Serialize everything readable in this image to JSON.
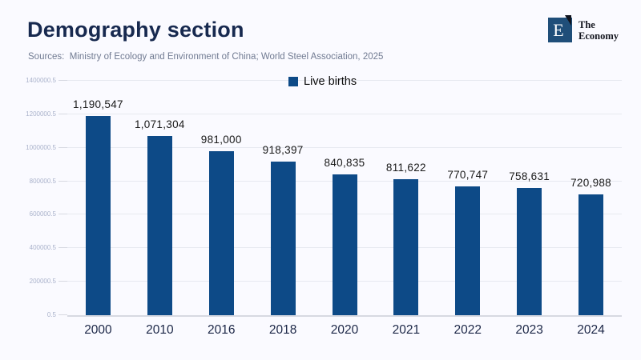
{
  "header": {
    "title": "Demography section",
    "sources": "Sources:  Ministry of Ecology and Environment of China; World Steel Association, 2025",
    "logo": {
      "mark_letter": "E",
      "name_line1": "The",
      "name_line2": "Economy",
      "mark_color": "#1f4e79"
    }
  },
  "chart_data": {
    "type": "bar",
    "title": "",
    "legend": [
      "Live births"
    ],
    "legend_position": "top-center",
    "categories": [
      "2000",
      "2010",
      "2016",
      "2018",
      "2020",
      "2021",
      "2022",
      "2023",
      "2024"
    ],
    "values": [
      1190547,
      1071304,
      981000,
      918397,
      840835,
      811622,
      770747,
      758631,
      720988
    ],
    "value_labels": [
      "1,190,547",
      "1,071,304",
      "981,000",
      "918,397",
      "840,835",
      "811,622",
      "770,747",
      "758,631",
      "720,988"
    ],
    "ylim": [
      0,
      1400000
    ],
    "y_tick_labels": [
      "0.5",
      "200000.5",
      "400000.5",
      "600000.5",
      "800000.5",
      "1000000.5",
      "1200000.5",
      "1400000.5"
    ],
    "y_tick_values": [
      0,
      200000,
      400000,
      600000,
      800000,
      1000000,
      1200000,
      1400000
    ],
    "grid": true,
    "bar_color": "#0d4a87"
  },
  "colors": {
    "background": "#fafaff",
    "bar": "#0d4a87",
    "gridline": "#e6e9f0",
    "axis_line": "#d6d9e1",
    "y_tick_text": "#a9b2cb",
    "x_tick_text": "#1c2747",
    "title_text": "#17294f",
    "sources_text": "#717b92"
  }
}
